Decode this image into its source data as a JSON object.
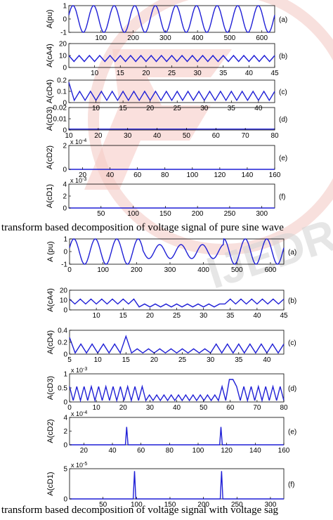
{
  "colors": {
    "line": "#1f1fd6",
    "watermark": "#f3c2bd",
    "watermark_gray": "#d9d9d9"
  },
  "captions": {
    "top": "t transform based decomposition of voltage signal of pure sine wave",
    "bottom": "t transform based decomposition of voltage signal with voltage sag"
  },
  "chart_data": [
    {
      "type": "line",
      "group": "pure sine wave",
      "tag": "(a)",
      "ylabel": "A(pu)",
      "xlim": [
        0,
        640
      ],
      "ylim": [
        -1,
        1
      ],
      "xticks": [
        100,
        200,
        300,
        400,
        500,
        600
      ],
      "yticks": [
        -1,
        0,
        1
      ],
      "exponent": "",
      "signal": {
        "kind": "sine",
        "cycles": 10,
        "amplitude": 1
      }
    },
    {
      "type": "line",
      "group": "pure sine wave",
      "tag": "(b)",
      "ylabel": "A(cA4)",
      "xlim": [
        5,
        45
      ],
      "ylim": [
        0,
        20
      ],
      "xticks": [
        10,
        15,
        20,
        25,
        30,
        35,
        40,
        45
      ],
      "yticks": [
        0,
        10,
        20
      ],
      "exponent": "",
      "signal": {
        "kind": "zigzag",
        "n": 41,
        "high": 10,
        "low": 5
      }
    },
    {
      "type": "line",
      "group": "pure sine wave",
      "tag": "(c)",
      "ylabel": "A(cD4)",
      "xlim": [
        5,
        43
      ],
      "ylim": [
        0,
        0.2
      ],
      "xticks": [
        10,
        15,
        20,
        25,
        30,
        35,
        40
      ],
      "yticks": [
        0,
        0.1,
        0.2
      ],
      "exponent": "",
      "signal": {
        "kind": "zigzag",
        "n": 39,
        "high": 0.1,
        "low": 0.02,
        "first": 0.18
      }
    },
    {
      "type": "line",
      "group": "pure sine wave",
      "tag": "(d)",
      "ylabel": "A(cD3)",
      "xlim": [
        10,
        80
      ],
      "ylim": [
        0,
        0.02
      ],
      "xticks": [
        10,
        20,
        30,
        40,
        50,
        60,
        70,
        80
      ],
      "yticks": [
        0,
        0.01,
        0.02
      ],
      "exponent": "",
      "signal": {
        "kind": "flat",
        "value": 0.0008
      }
    },
    {
      "type": "line",
      "group": "pure sine wave",
      "tag": "(e)",
      "ylabel": "A(cD2)",
      "xlim": [
        10,
        160
      ],
      "ylim": [
        0,
        2
      ],
      "xticks": [
        20,
        40,
        60,
        80,
        100,
        120,
        140,
        160
      ],
      "yticks": [
        0,
        2
      ],
      "exponent": "-4",
      "signal": {
        "kind": "flat",
        "value": 0
      }
    },
    {
      "type": "line",
      "group": "pure sine wave",
      "tag": "(f)",
      "ylabel": "A(cD1)",
      "xlim": [
        0,
        320
      ],
      "ylim": [
        0,
        4
      ],
      "xticks": [
        50,
        100,
        150,
        200,
        250,
        300
      ],
      "yticks": [
        0,
        2,
        4
      ],
      "exponent": "-3",
      "signal": {
        "kind": "flat",
        "value": 0
      }
    },
    {
      "type": "line",
      "group": "voltage sag",
      "tag": "(a)",
      "ylabel": "A (pu)",
      "xlim": [
        0,
        640
      ],
      "ylim": [
        -1,
        1
      ],
      "xticks": [
        0,
        100,
        200,
        300,
        400,
        500,
        600
      ],
      "yticks": [
        -1,
        0,
        1
      ],
      "exponent": "",
      "signal": {
        "kind": "sag_sine",
        "cycles": 10,
        "amplitude": 1,
        "sag_from": 0.34,
        "sag_to": 0.72,
        "sag_amplitude": 0.55
      }
    },
    {
      "type": "line",
      "group": "voltage sag",
      "tag": "(b)",
      "ylabel": "A(cA4)",
      "xlim": [
        5,
        45
      ],
      "ylim": [
        0,
        20
      ],
      "xticks": [
        10,
        15,
        20,
        25,
        30,
        35,
        40,
        45
      ],
      "yticks": [
        0,
        10,
        20
      ],
      "exponent": "",
      "signal": {
        "kind": "sag_zigzag",
        "n": 41,
        "high": 11,
        "low": 6,
        "sag_high": 6,
        "sag_low": 3,
        "sag_from": 0.3,
        "sag_to": 0.72
      }
    },
    {
      "type": "line",
      "group": "voltage sag",
      "tag": "(c)",
      "ylabel": "A(cD4)",
      "xlim": [
        5,
        43
      ],
      "ylim": [
        0,
        0.4
      ],
      "xticks": [
        5,
        10,
        15,
        20,
        25,
        30,
        35,
        40
      ],
      "yticks": [
        0,
        0.2,
        0.4
      ],
      "exponent": "",
      "signal": {
        "kind": "sag_zigzag",
        "n": 39,
        "high": 0.17,
        "low": 0.02,
        "sag_high": 0.09,
        "sag_low": 0.02,
        "sag_from": 0.27,
        "sag_to": 0.67,
        "first": 0.28,
        "spike_at": 15,
        "spike": 0.3
      }
    },
    {
      "type": "line",
      "group": "voltage sag",
      "tag": "(d)",
      "ylabel": "A(cD3)",
      "xlim": [
        0,
        80
      ],
      "ylim": [
        0,
        1
      ],
      "xticks": [
        0,
        10,
        20,
        30,
        40,
        50,
        60,
        70,
        80
      ],
      "yticks": [
        0,
        0.5,
        1
      ],
      "exponent": "-3",
      "signal": {
        "kind": "sag_zigzag",
        "n": 60,
        "high": 0.55,
        "low": 0.05,
        "sag_high": 0.25,
        "sag_low": 0.05,
        "sag_from": 0.35,
        "sag_to": 0.7,
        "spike_at": 60,
        "spike": 0.8
      }
    },
    {
      "type": "line",
      "group": "voltage sag",
      "tag": "(e)",
      "ylabel": "A(cD2)",
      "xlim": [
        10,
        160
      ],
      "ylim": [
        0,
        4
      ],
      "xticks": [
        20,
        40,
        60,
        80,
        100,
        120,
        140,
        160
      ],
      "yticks": [
        0,
        2,
        4
      ],
      "exponent": "-4",
      "signal": {
        "kind": "spikes",
        "base": 0,
        "spikes": [
          [
            50,
            2.6
          ],
          [
            116,
            2.6
          ]
        ]
      }
    },
    {
      "type": "line",
      "group": "voltage sag",
      "tag": "(f)",
      "ylabel": "A(cD1)",
      "xlim": [
        0,
        320
      ],
      "ylim": [
        0,
        5
      ],
      "xticks": [
        50,
        100,
        150,
        200,
        250,
        300
      ],
      "yticks": [
        0,
        5
      ],
      "exponent": "-5",
      "signal": {
        "kind": "spikes",
        "base": 0,
        "spikes": [
          [
            97,
            4.6
          ],
          [
            227,
            4.6
          ]
        ]
      }
    }
  ]
}
